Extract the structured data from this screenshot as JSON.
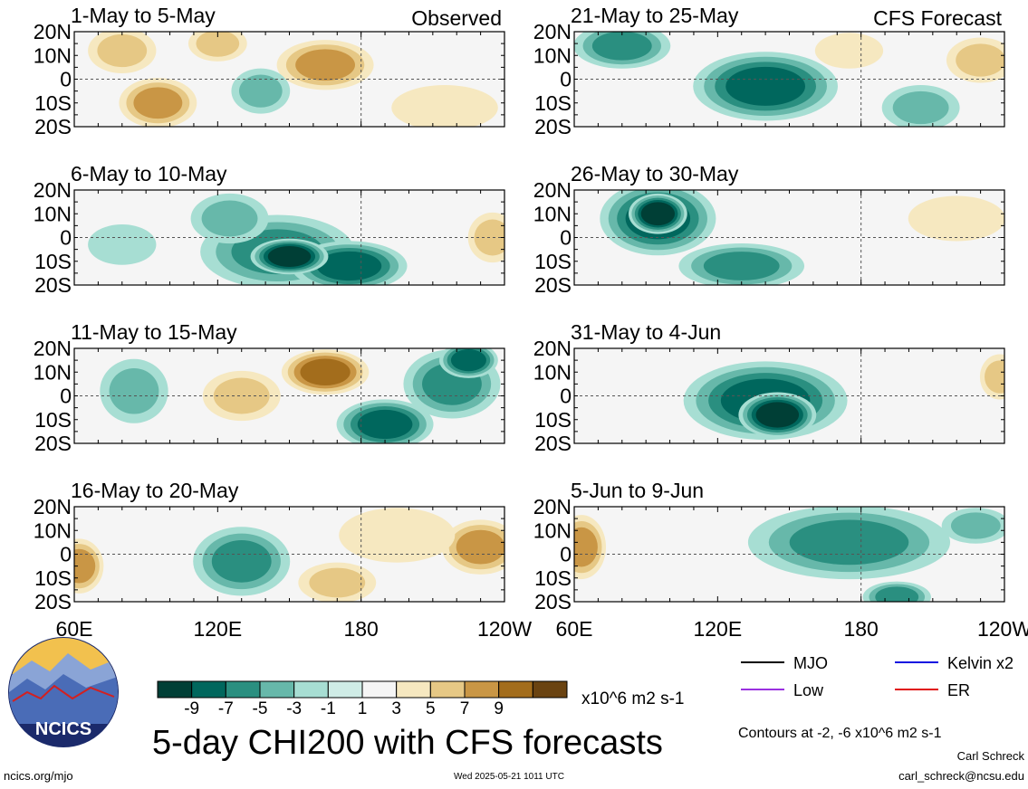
{
  "chart_data": {
    "type": "heatmap",
    "title": "5-day CHI200 with CFS forecasts",
    "colorbar_units": "x10^6 m2 s-1",
    "colorbar_ticks": [
      "-9",
      "-7",
      "-5",
      "-3",
      "-1",
      "1",
      "3",
      "5",
      "7",
      "9"
    ],
    "colorbar_colors": [
      "#003f36",
      "#00675d",
      "#2a8f80",
      "#67b8aa",
      "#a7ded3",
      "#cfece6",
      "#f5f5f5",
      "#f6e8c0",
      "#e6c885",
      "#c99645",
      "#a36d1c",
      "#6a4311"
    ],
    "lat_ticks": [
      "20N",
      "10N",
      "0",
      "10S",
      "20S"
    ],
    "lon_ticks": [
      "60E",
      "120E",
      "180",
      "120W"
    ],
    "lon_range": [
      60,
      240
    ],
    "lat_range": [
      -20,
      20
    ],
    "contours_note": "Contours at -2, -6 x10^6 m2 s-1",
    "legend": [
      {
        "label": "MJO",
        "color": "#000000"
      },
      {
        "label": "Kelvin x2",
        "color": "#1010e0"
      },
      {
        "label": "Low",
        "color": "#9a30e0"
      },
      {
        "label": "ER",
        "color": "#e01010"
      }
    ],
    "panels": [
      {
        "title": "1-May to 5-May",
        "tag": "Observed",
        "blobs": [
          {
            "lon": 165,
            "lat": 6,
            "rx": 18,
            "ry": 9,
            "v": 6
          },
          {
            "lon": 95,
            "lat": -10,
            "rx": 14,
            "ry": 9,
            "v": 6
          },
          {
            "lon": 80,
            "lat": 12,
            "rx": 12,
            "ry": 8,
            "v": 3
          },
          {
            "lon": 138,
            "lat": -5,
            "rx": 10,
            "ry": 8,
            "v": -3
          },
          {
            "lon": 215,
            "lat": -12,
            "rx": 20,
            "ry": 8,
            "v": 2
          },
          {
            "lon": 120,
            "lat": 15,
            "rx": 10,
            "ry": 6,
            "v": 3
          }
        ]
      },
      {
        "title": "6-May to 10-May",
        "tag": "",
        "blobs": [
          {
            "lon": 145,
            "lat": -6,
            "rx": 30,
            "ry": 14,
            "v": -6
          },
          {
            "lon": 175,
            "lat": -12,
            "rx": 22,
            "ry": 9,
            "v": -8
          },
          {
            "lon": 150,
            "lat": -8,
            "rx": 14,
            "ry": 6,
            "v": -9
          },
          {
            "lon": 125,
            "lat": 8,
            "rx": 14,
            "ry": 9,
            "v": -4
          },
          {
            "lon": 80,
            "lat": -3,
            "rx": 12,
            "ry": 7,
            "v": -2
          },
          {
            "lon": 235,
            "lat": 0,
            "rx": 8,
            "ry": 9,
            "v": 3
          }
        ]
      },
      {
        "title": "11-May to 15-May",
        "tag": "",
        "blobs": [
          {
            "lon": 165,
            "lat": 10,
            "rx": 16,
            "ry": 8,
            "v": 7
          },
          {
            "lon": 190,
            "lat": -12,
            "rx": 18,
            "ry": 9,
            "v": -7
          },
          {
            "lon": 218,
            "lat": 5,
            "rx": 18,
            "ry": 13,
            "v": -5
          },
          {
            "lon": 85,
            "lat": 2,
            "rx": 12,
            "ry": 12,
            "v": -3
          },
          {
            "lon": 130,
            "lat": 0,
            "rx": 14,
            "ry": 9,
            "v": 3
          },
          {
            "lon": 225,
            "lat": 15,
            "rx": 10,
            "ry": 6,
            "v": -7
          }
        ]
      },
      {
        "title": "16-May to 20-May",
        "tag": "",
        "blobs": [
          {
            "lon": 130,
            "lat": -3,
            "rx": 18,
            "ry": 13,
            "v": -6
          },
          {
            "lon": 230,
            "lat": 3,
            "rx": 14,
            "ry": 10,
            "v": 6
          },
          {
            "lon": 62,
            "lat": -5,
            "rx": 8,
            "ry": 10,
            "v": 6
          },
          {
            "lon": 195,
            "lat": 8,
            "rx": 22,
            "ry": 10,
            "v": 2
          },
          {
            "lon": 170,
            "lat": -12,
            "rx": 14,
            "ry": 7,
            "v": 3
          }
        ]
      },
      {
        "title": "21-May to 25-May",
        "tag": "CFS Forecast",
        "blobs": [
          {
            "lon": 80,
            "lat": 14,
            "rx": 18,
            "ry": 8,
            "v": -6
          },
          {
            "lon": 140,
            "lat": -3,
            "rx": 28,
            "ry": 13,
            "v": -7
          },
          {
            "lon": 205,
            "lat": -12,
            "rx": 14,
            "ry": 8,
            "v": -4
          },
          {
            "lon": 230,
            "lat": 8,
            "rx": 12,
            "ry": 8,
            "v": 3
          },
          {
            "lon": 175,
            "lat": 12,
            "rx": 12,
            "ry": 6,
            "v": 2
          }
        ]
      },
      {
        "title": "26-May to 30-May",
        "tag": "",
        "blobs": [
          {
            "lon": 95,
            "lat": 8,
            "rx": 22,
            "ry": 14,
            "v": -8
          },
          {
            "lon": 95,
            "lat": 10,
            "rx": 10,
            "ry": 7,
            "v": -9
          },
          {
            "lon": 130,
            "lat": -12,
            "rx": 24,
            "ry": 8,
            "v": -6
          },
          {
            "lon": 220,
            "lat": 8,
            "rx": 18,
            "ry": 8,
            "v": 2
          }
        ]
      },
      {
        "title": "31-May to 4-Jun",
        "tag": "",
        "blobs": [
          {
            "lon": 140,
            "lat": -2,
            "rx": 32,
            "ry": 15,
            "v": -7
          },
          {
            "lon": 145,
            "lat": -8,
            "rx": 14,
            "ry": 8,
            "v": -9
          },
          {
            "lon": 238,
            "lat": 8,
            "rx": 6,
            "ry": 8,
            "v": 4
          }
        ]
      },
      {
        "title": "5-Jun to 9-Jun",
        "tag": "",
        "blobs": [
          {
            "lon": 175,
            "lat": 5,
            "rx": 40,
            "ry": 14,
            "v": -5
          },
          {
            "lon": 195,
            "lat": -18,
            "rx": 12,
            "ry": 5,
            "v": -6
          },
          {
            "lon": 63,
            "lat": 3,
            "rx": 8,
            "ry": 12,
            "v": 5
          },
          {
            "lon": 228,
            "lat": 12,
            "rx": 12,
            "ry": 6,
            "v": -3
          }
        ]
      }
    ]
  },
  "footer": {
    "logo_text": "NCICS",
    "site": "ncics.org/mjo",
    "timestamp": "Wed 2025-05-21 1011 UTC",
    "author": "Carl Schreck",
    "email": "carl_schreck@ncsu.edu"
  }
}
